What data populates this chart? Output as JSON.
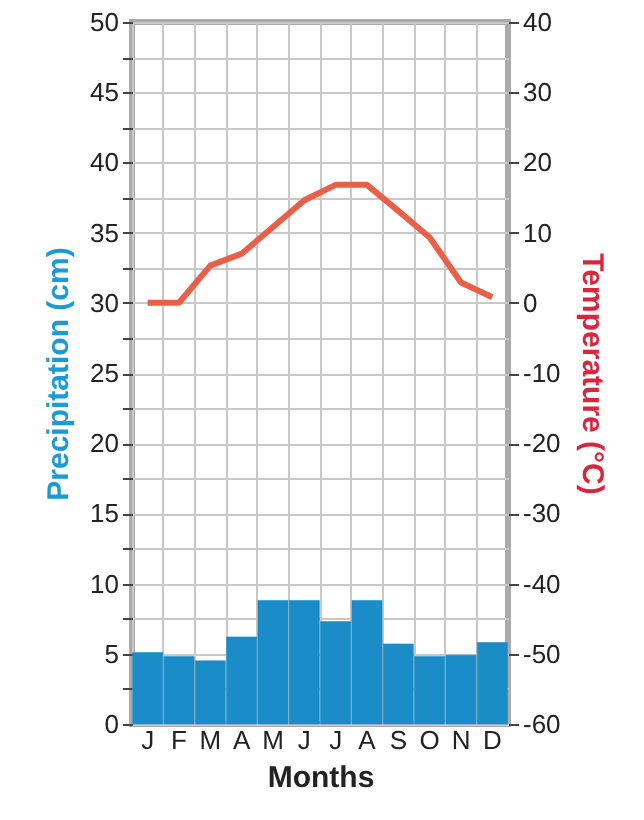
{
  "chart_data": {
    "type": "bar",
    "xlabel": "Months",
    "ylabel": "Precipitation (cm)",
    "y2label": "Temperature (°C)",
    "categories": [
      "J",
      "F",
      "M",
      "A",
      "M",
      "J",
      "J",
      "A",
      "S",
      "O",
      "N",
      "D"
    ],
    "series": [
      {
        "color": "#1a8cc8",
        "values": [
          5.1,
          4.8,
          4.5,
          6.2,
          8.8,
          8.8,
          7.3,
          8.8,
          5.7,
          4.8,
          4.9,
          5.8
        ]
      },
      {
        "type": "line",
        "axis": "y2",
        "color": "#e8604a",
        "values": [
          0,
          0,
          5.3,
          7,
          10.8,
          14.6,
          16.8,
          16.8,
          13.1,
          9.3,
          2.9,
          0.8
        ]
      }
    ],
    "ylim": [
      0,
      50
    ],
    "yticks": [
      0,
      {
        "value": 2.5,
        "label": null
      },
      5,
      {
        "value": 7.5,
        "label": null
      },
      10,
      {
        "value": 12.5,
        "label": null
      },
      15,
      {
        "value": 17.5,
        "label": null
      },
      20,
      {
        "value": 22.5,
        "label": null
      },
      25,
      {
        "value": 27.5,
        "label": null
      },
      30,
      {
        "value": 32.5,
        "label": null
      },
      35,
      {
        "value": 37.5,
        "label": null
      },
      40,
      {
        "value": 42.5,
        "label": null
      },
      45,
      {
        "value": 47.5,
        "label": null
      },
      50
    ],
    "y2lim": [
      -60,
      40
    ],
    "y2ticks": [
      -60,
      -50,
      -40,
      -30,
      -20,
      -10,
      0,
      10,
      20,
      30,
      40
    ],
    "grid": true
  }
}
